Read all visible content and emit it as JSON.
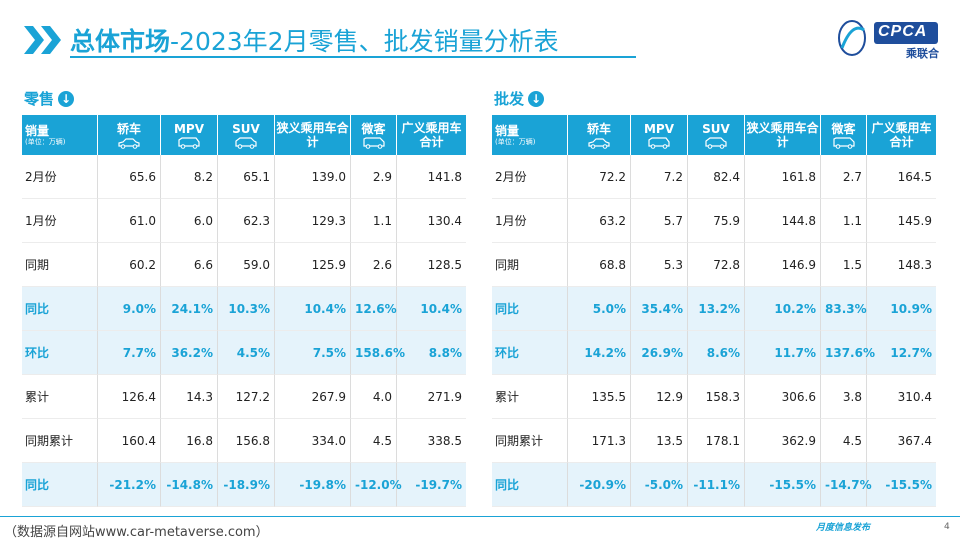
{
  "header": {
    "title_bold": "总体市场",
    "title_rest": "-2023年2月零售、批发销量分析表",
    "logo_text": "CPCA",
    "logo_sub": "乘联合"
  },
  "retail": {
    "label": "零售",
    "icon": "down-arrow-circle-icon",
    "headers": [
      {
        "text": "销量",
        "sub": "(单位：万辆)"
      },
      {
        "text": "轿车",
        "icon": "sedan-car-icon"
      },
      {
        "text": "MPV",
        "icon": "mpv-car-icon"
      },
      {
        "text": "SUV",
        "icon": "suv-car-icon"
      },
      {
        "text": "狭义乘用车合计"
      },
      {
        "text": "微客",
        "icon": "minivan-icon"
      },
      {
        "text": "广义乘用车合计"
      }
    ],
    "rows": [
      {
        "label": "2月份",
        "values": [
          "65.6",
          "8.2",
          "65.1",
          "139.0",
          "2.9",
          "141.8"
        ],
        "highlight": false
      },
      {
        "label": "1月份",
        "values": [
          "61.0",
          "6.0",
          "62.3",
          "129.3",
          "1.1",
          "130.4"
        ],
        "highlight": false
      },
      {
        "label": "同期",
        "values": [
          "60.2",
          "6.6",
          "59.0",
          "125.9",
          "2.6",
          "128.5"
        ],
        "highlight": false
      },
      {
        "label": "同比",
        "values": [
          "9.0%",
          "24.1%",
          "10.3%",
          "10.4%",
          "12.6%",
          "10.4%"
        ],
        "highlight": true
      },
      {
        "label": "环比",
        "values": [
          "7.7%",
          "36.2%",
          "4.5%",
          "7.5%",
          "158.6%",
          "8.8%"
        ],
        "highlight": true
      },
      {
        "label": "累计",
        "values": [
          "126.4",
          "14.3",
          "127.2",
          "267.9",
          "4.0",
          "271.9"
        ],
        "highlight": false
      },
      {
        "label": "同期累计",
        "values": [
          "160.4",
          "16.8",
          "156.8",
          "334.0",
          "4.5",
          "338.5"
        ],
        "highlight": false
      },
      {
        "label": "同比",
        "values": [
          "-21.2%",
          "-14.8%",
          "-18.9%",
          "-19.8%",
          "-12.0%",
          "-19.7%"
        ],
        "highlight": true
      }
    ]
  },
  "wholesale": {
    "label": "批发",
    "icon": "down-arrow-circle-icon",
    "headers": [
      {
        "text": "销量",
        "sub": "(单位：万辆)"
      },
      {
        "text": "轿车",
        "icon": "sedan-car-icon"
      },
      {
        "text": "MPV",
        "icon": "mpv-car-icon"
      },
      {
        "text": "SUV",
        "icon": "suv-car-icon"
      },
      {
        "text": "狭义乘用车合计"
      },
      {
        "text": "微客",
        "icon": "minivan-icon"
      },
      {
        "text": "广义乘用车合计"
      }
    ],
    "rows": [
      {
        "label": "2月份",
        "values": [
          "72.2",
          "7.2",
          "82.4",
          "161.8",
          "2.7",
          "164.5"
        ],
        "highlight": false
      },
      {
        "label": "1月份",
        "values": [
          "63.2",
          "5.7",
          "75.9",
          "144.8",
          "1.1",
          "145.9"
        ],
        "highlight": false
      },
      {
        "label": "同期",
        "values": [
          "68.8",
          "5.3",
          "72.8",
          "146.9",
          "1.5",
          "148.3"
        ],
        "highlight": false
      },
      {
        "label": "同比",
        "values": [
          "5.0%",
          "35.4%",
          "13.2%",
          "10.2%",
          "83.3%",
          "10.9%"
        ],
        "highlight": true
      },
      {
        "label": "环比",
        "values": [
          "14.2%",
          "26.9%",
          "8.6%",
          "11.7%",
          "137.6%",
          "12.7%"
        ],
        "highlight": true
      },
      {
        "label": "累计",
        "values": [
          "135.5",
          "12.9",
          "158.3",
          "306.6",
          "3.8",
          "310.4"
        ],
        "highlight": false
      },
      {
        "label": "同期累计",
        "values": [
          "171.3",
          "13.5",
          "178.1",
          "362.9",
          "4.5",
          "367.4"
        ],
        "highlight": false
      },
      {
        "label": "同比",
        "values": [
          "-20.9%",
          "-5.0%",
          "-11.1%",
          "-15.5%",
          "-14.7%",
          "-15.5%"
        ],
        "highlight": true
      }
    ]
  },
  "footer": {
    "source": "（数据源自网站www.car-metaverse.com）",
    "right_text": "月度信息发布",
    "page": "4"
  },
  "colors": {
    "accent": "#1aa3d6",
    "highlight_bg": "#e5f3fb"
  }
}
